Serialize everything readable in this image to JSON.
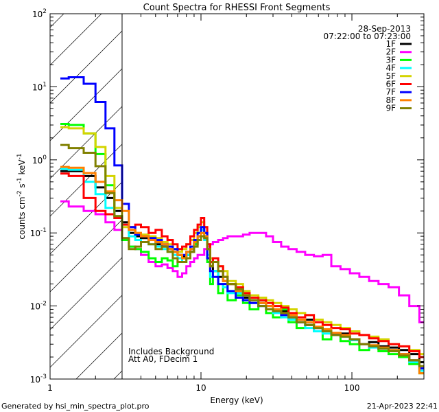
{
  "chart_data": {
    "type": "line",
    "step": true,
    "title": "Count Spectra for RHESSI Front Segments",
    "xlabel": "Energy (keV)",
    "ylabel_parts": [
      "counts cm",
      "-2",
      " s",
      "-1",
      " keV",
      "-1"
    ],
    "xscale": "log",
    "yscale": "log",
    "xlim": [
      1,
      300
    ],
    "ylim": [
      0.001,
      100
    ],
    "xticks": [
      {
        "value": 1,
        "label": "1"
      },
      {
        "value": 10,
        "label": "10"
      },
      {
        "value": 100,
        "label": "100"
      }
    ],
    "yticks": [
      {
        "value": 100,
        "base": "10",
        "exp": "2"
      },
      {
        "value": 10,
        "base": "10",
        "exp": "1"
      },
      {
        "value": 1,
        "base": "10",
        "exp": "0"
      },
      {
        "value": 0.1,
        "base": "10",
        "exp": "-1"
      },
      {
        "value": 0.01,
        "base": "10",
        "exp": "-2"
      },
      {
        "value": 0.001,
        "base": "10",
        "exp": "-3"
      }
    ],
    "shaded_region_keV": [
      1,
      3
    ],
    "date": "28-Sep-2013",
    "time_range": "07:22:00 to 07:23:00",
    "annotations": [
      "Includes Background",
      "Att A0, FDecim 1"
    ],
    "legend_position": "top-right",
    "energy_edges": [
      1.17,
      1.33,
      1.67,
      2.0,
      2.33,
      2.67,
      3.0,
      3.33,
      3.67,
      4.0,
      4.5,
      5.0,
      5.5,
      6.0,
      6.5,
      7.0,
      7.5,
      8.0,
      8.5,
      9.0,
      9.5,
      10.0,
      10.5,
      11.0,
      11.5,
      12,
      13,
      14,
      15,
      17,
      19,
      21,
      24,
      27,
      30,
      34,
      38,
      43,
      49,
      56,
      64,
      73,
      84,
      97,
      112,
      130,
      150,
      175,
      205,
      240,
      280,
      300
    ],
    "series": [
      {
        "name": "1F",
        "color": "#000000",
        "values": [
          0.7,
          0.7,
          0.6,
          0.42,
          0.3,
          0.2,
          0.14,
          0.1,
          0.09,
          0.085,
          0.08,
          0.07,
          0.065,
          0.06,
          0.055,
          0.05,
          0.048,
          0.05,
          0.055,
          0.07,
          0.09,
          0.12,
          0.1,
          0.06,
          0.035,
          0.03,
          0.025,
          0.022,
          0.02,
          0.016,
          0.013,
          0.012,
          0.011,
          0.01,
          0.009,
          0.0085,
          0.007,
          0.006,
          0.0065,
          0.005,
          0.0045,
          0.004,
          0.0042,
          0.0035,
          0.003,
          0.0032,
          0.0028,
          0.0027,
          0.0025,
          0.0022,
          0.0017
        ]
      },
      {
        "name": "2F",
        "color": "#ff00ff",
        "values": [
          0.27,
          0.23,
          0.2,
          0.18,
          0.14,
          0.11,
          0.085,
          0.065,
          0.06,
          0.05,
          0.04,
          0.035,
          0.037,
          0.033,
          0.03,
          0.025,
          0.028,
          0.035,
          0.04,
          0.045,
          0.05,
          0.05,
          0.06,
          0.065,
          0.07,
          0.075,
          0.08,
          0.085,
          0.09,
          0.09,
          0.095,
          0.1,
          0.1,
          0.09,
          0.075,
          0.065,
          0.06,
          0.055,
          0.05,
          0.048,
          0.05,
          0.035,
          0.032,
          0.028,
          0.025,
          0.022,
          0.02,
          0.018,
          0.014,
          0.01,
          0.006
        ]
      },
      {
        "name": "3F",
        "color": "#00ff00",
        "values": [
          3.1,
          3.0,
          2.3,
          1.2,
          0.45,
          0.17,
          0.08,
          0.065,
          0.06,
          0.055,
          0.045,
          0.04,
          0.045,
          0.042,
          0.035,
          0.04,
          0.045,
          0.05,
          0.06,
          0.07,
          0.08,
          0.1,
          0.09,
          0.04,
          0.02,
          0.03,
          0.015,
          0.02,
          0.012,
          0.014,
          0.011,
          0.009,
          0.012,
          0.008,
          0.007,
          0.009,
          0.006,
          0.005,
          0.0055,
          0.0045,
          0.0035,
          0.004,
          0.0033,
          0.003,
          0.0025,
          0.0028,
          0.0024,
          0.0022,
          0.002,
          0.0016,
          0.0012
        ]
      },
      {
        "name": "4F",
        "color": "#00ffff",
        "values": [
          0.75,
          0.73,
          0.5,
          0.34,
          0.22,
          0.16,
          0.13,
          0.09,
          0.08,
          0.075,
          0.07,
          0.065,
          0.06,
          0.055,
          0.05,
          0.045,
          0.04,
          0.05,
          0.06,
          0.075,
          0.1,
          0.11,
          0.08,
          0.05,
          0.025,
          0.03,
          0.02,
          0.018,
          0.015,
          0.015,
          0.012,
          0.011,
          0.01,
          0.009,
          0.008,
          0.007,
          0.0065,
          0.006,
          0.005,
          0.0045,
          0.0042,
          0.004,
          0.0038,
          0.0034,
          0.003,
          0.0027,
          0.0026,
          0.0025,
          0.0022,
          0.0017,
          0.0013
        ]
      },
      {
        "name": "5F",
        "color": "#d4d400",
        "values": [
          2.8,
          2.7,
          2.3,
          1.5,
          0.6,
          0.22,
          0.12,
          0.11,
          0.1,
          0.095,
          0.09,
          0.085,
          0.075,
          0.07,
          0.06,
          0.055,
          0.06,
          0.07,
          0.08,
          0.1,
          0.12,
          0.14,
          0.12,
          0.07,
          0.045,
          0.04,
          0.035,
          0.03,
          0.022,
          0.02,
          0.016,
          0.014,
          0.013,
          0.012,
          0.011,
          0.01,
          0.009,
          0.008,
          0.0075,
          0.0065,
          0.006,
          0.0055,
          0.005,
          0.0045,
          0.004,
          0.0038,
          0.0035,
          0.003,
          0.0028,
          0.0025,
          0.0022
        ]
      },
      {
        "name": "6F",
        "color": "#ff0000",
        "values": [
          0.65,
          0.6,
          0.3,
          0.2,
          0.18,
          0.16,
          0.13,
          0.12,
          0.13,
          0.12,
          0.1,
          0.11,
          0.09,
          0.08,
          0.07,
          0.06,
          0.065,
          0.07,
          0.09,
          0.11,
          0.13,
          0.16,
          0.12,
          0.07,
          0.04,
          0.045,
          0.035,
          0.025,
          0.02,
          0.018,
          0.015,
          0.013,
          0.012,
          0.011,
          0.01,
          0.0095,
          0.008,
          0.007,
          0.0075,
          0.006,
          0.0055,
          0.005,
          0.0048,
          0.0042,
          0.004,
          0.0036,
          0.0033,
          0.003,
          0.0028,
          0.0024,
          0.002
        ]
      },
      {
        "name": "7F",
        "color": "#0000ff",
        "values": [
          13,
          13.5,
          11,
          6.2,
          2.7,
          0.84,
          0.25,
          0.12,
          0.095,
          0.09,
          0.085,
          0.08,
          0.07,
          0.065,
          0.06,
          0.05,
          0.05,
          0.055,
          0.065,
          0.08,
          0.1,
          0.12,
          0.1,
          0.045,
          0.03,
          0.025,
          0.02,
          0.02,
          0.016,
          0.013,
          0.012,
          0.011,
          0.01,
          0.009,
          0.0085,
          0.0075,
          0.007,
          0.006,
          0.0055,
          0.005,
          0.0045,
          0.0042,
          0.004,
          0.0035,
          0.003,
          0.0028,
          0.0026,
          0.0024,
          0.0022,
          0.0018,
          0.0014
        ]
      },
      {
        "name": "8F",
        "color": "#ff8000",
        "values": [
          0.8,
          0.78,
          0.66,
          0.5,
          0.37,
          0.28,
          0.2,
          0.11,
          0.1,
          0.09,
          0.08,
          0.075,
          0.07,
          0.06,
          0.055,
          0.05,
          0.045,
          0.055,
          0.06,
          0.075,
          0.09,
          0.1,
          0.09,
          0.06,
          0.035,
          0.04,
          0.03,
          0.022,
          0.02,
          0.016,
          0.014,
          0.012,
          0.011,
          0.01,
          0.009,
          0.008,
          0.0075,
          0.0065,
          0.006,
          0.0052,
          0.0048,
          0.0043,
          0.004,
          0.0035,
          0.003,
          0.0029,
          0.0027,
          0.0025,
          0.0022,
          0.0018,
          0.0012
        ]
      },
      {
        "name": "9F",
        "color": "#808000",
        "values": [
          1.6,
          1.45,
          1.25,
          0.82,
          0.35,
          0.17,
          0.085,
          0.06,
          0.065,
          0.075,
          0.07,
          0.06,
          0.065,
          0.055,
          0.045,
          0.04,
          0.04,
          0.045,
          0.055,
          0.065,
          0.08,
          0.09,
          0.085,
          0.06,
          0.035,
          0.04,
          0.03,
          0.025,
          0.02,
          0.017,
          0.014,
          0.012,
          0.01,
          0.009,
          0.0085,
          0.008,
          0.007,
          0.006,
          0.0055,
          0.005,
          0.0045,
          0.004,
          0.0038,
          0.0035,
          0.003,
          0.0028,
          0.0026,
          0.0024,
          0.0021,
          0.0018,
          0.0015
        ]
      }
    ]
  },
  "footer": {
    "generated_by": "Generated by hsi_min_spectra_plot.pro",
    "timestamp": "21-Apr-2023 22:41"
  }
}
